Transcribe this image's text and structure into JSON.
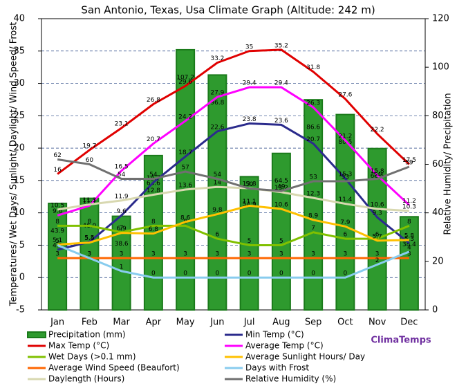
{
  "chart_data": {
    "type": "combo",
    "title": "San Antonio, Texas, Usa Climate Graph (Altitude: 242 m)",
    "y_label": "Temperatures/ Wet Days/ Sunlight/ Daylight/ Wind Speed/ Frost",
    "y2_label": "Relative Humidity/ Precipitation",
    "brand": "ClimaTemps",
    "categories": [
      "Jan",
      "Feb",
      "Mar",
      "Apr",
      "May",
      "Jun",
      "Jul",
      "Aug",
      "Sep",
      "Oct",
      "Nov",
      "Dec"
    ],
    "ylim": [
      -5,
      40
    ],
    "yticks": [
      -5,
      0,
      5,
      10,
      15,
      20,
      25,
      30,
      35,
      40
    ],
    "y2lim": [
      0,
      120
    ],
    "y2ticks": [
      0,
      20,
      40,
      60,
      80,
      100,
      120
    ],
    "grid": true,
    "series": [
      {
        "name": "Precipitation (mm)",
        "kind": "bar",
        "axis": "y2",
        "color": "#2e9a2e",
        "values": [
          43.9,
          46,
          38.6,
          63.6,
          107.2,
          96.8,
          54.9,
          64.5,
          86.6,
          80.5,
          66.5,
          38.4
        ],
        "value_labels": [
          "43.9",
          "46.0",
          "38.6",
          "63.6",
          "107.2",
          "96.8",
          "54.9",
          "64.5",
          "86.6",
          "80.5",
          "66.5",
          "38.4"
        ]
      },
      {
        "name": "Min Temp (°C)",
        "kind": "line",
        "color": "#2b2b8c",
        "values": [
          4.3,
          5.5,
          9.6,
          14.7,
          18.7,
          22.6,
          23.8,
          23.6,
          20.7,
          15.3,
          9.3,
          5.3
        ]
      },
      {
        "name": "Max Temp (°C)",
        "kind": "line",
        "color": "#e00000",
        "values": [
          16,
          19.7,
          23.1,
          26.8,
          29.6,
          33.2,
          35,
          35.2,
          31.8,
          27.6,
          22.2,
          17.5
        ]
      },
      {
        "name": "Average Temp (°C)",
        "kind": "line",
        "color": "#ff00ff",
        "values": [
          9.6,
          11.1,
          16.5,
          20.7,
          24.2,
          27.9,
          29.4,
          29.4,
          26.3,
          21.2,
          15.8,
          11.2
        ]
      },
      {
        "name": "Wet Days (>0.1 mm)",
        "kind": "line",
        "color": "#80c000",
        "values": [
          8,
          8,
          7,
          8,
          8,
          6,
          5,
          5,
          7,
          6,
          6,
          8
        ]
      },
      {
        "name": "Average Sunlight Hours/ Day",
        "kind": "line",
        "color": "#ffc000",
        "values": [
          5.1,
          5.4,
          6.9,
          6.8,
          8.6,
          9.8,
          11.1,
          10.6,
          8.9,
          7.9,
          5.7,
          5.8
        ]
      },
      {
        "name": "Average Wind Speed (Beaufort)",
        "kind": "line",
        "color": "#ff6600",
        "values": [
          3,
          3,
          3,
          3,
          3,
          3,
          3,
          3,
          3,
          3,
          3,
          3
        ]
      },
      {
        "name": "Days with Frost",
        "kind": "line",
        "color": "#88ccee",
        "values": [
          5,
          3,
          1,
          0,
          0,
          0,
          0,
          0,
          0,
          0,
          2,
          4
        ]
      },
      {
        "name": "Daylength (Hours)",
        "kind": "line",
        "color": "#d8d8b0",
        "values": [
          10.5,
          11.3,
          11.9,
          12.8,
          13.6,
          14,
          13.8,
          13.2,
          12.3,
          11.4,
          10.6,
          10.3
        ]
      },
      {
        "name": "Relative Humidity (%)",
        "kind": "line",
        "axis": "y2",
        "color": "#707070",
        "values": [
          62,
          60,
          54,
          54,
          57,
          54,
          50,
          49,
          53,
          53,
          54,
          59
        ]
      }
    ]
  }
}
